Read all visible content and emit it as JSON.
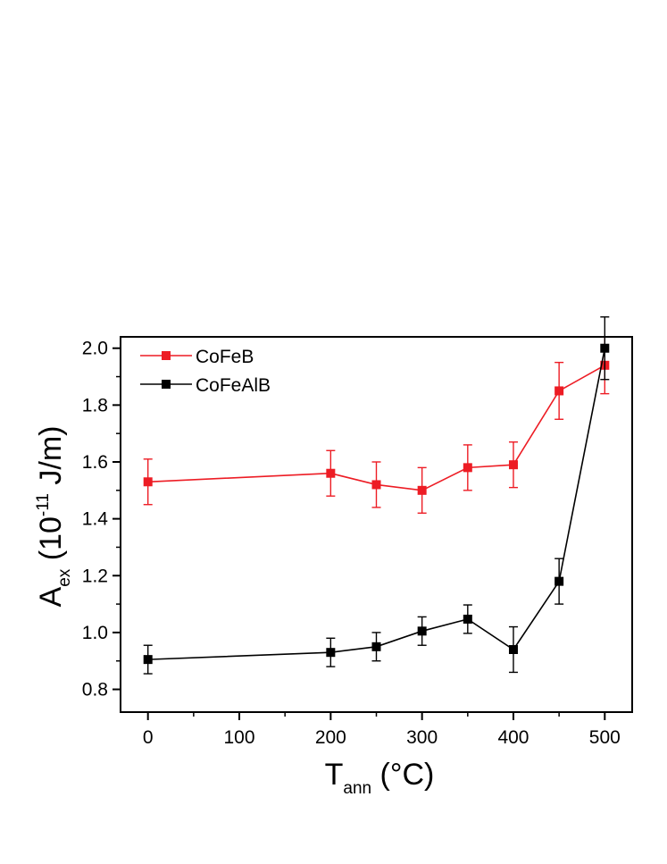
{
  "chart_data": {
    "type": "line",
    "title": "",
    "xlabel": {
      "main": "T",
      "sub": "ann",
      "unit": " (°C)"
    },
    "ylabel": {
      "main": "A",
      "sub": "ex",
      "pre_exp": " (10",
      "exp": "-11",
      "unit": " J/m)"
    },
    "xlim": [
      -30,
      530
    ],
    "ylim": [
      0.72,
      2.04
    ],
    "xticks": [
      0,
      100,
      200,
      300,
      400,
      500
    ],
    "xtick_labels": [
      "0",
      "100",
      "200",
      "300",
      "400",
      "500"
    ],
    "yticks": [
      0.8,
      1.0,
      1.2,
      1.4,
      1.6,
      1.8,
      2.0
    ],
    "ytick_labels": [
      "0.8",
      "1.0",
      "1.2",
      "1.4",
      "1.6",
      "1.8",
      "2.0"
    ],
    "grid": false,
    "legend_position": "top-left",
    "series": [
      {
        "name": "CoFeB",
        "color": "#ed1c24",
        "marker": "square",
        "x": [
          0,
          200,
          250,
          300,
          350,
          400,
          450,
          500
        ],
        "y": [
          1.53,
          1.56,
          1.52,
          1.5,
          1.58,
          1.59,
          1.85,
          1.94
        ],
        "yerr": [
          0.08,
          0.08,
          0.08,
          0.08,
          0.08,
          0.08,
          0.1,
          0.1
        ]
      },
      {
        "name": "CoFeAlB",
        "color": "#000000",
        "marker": "square",
        "x": [
          0,
          200,
          250,
          300,
          350,
          400,
          450,
          500
        ],
        "y": [
          0.905,
          0.93,
          0.95,
          1.005,
          1.047,
          0.94,
          1.18,
          2.0
        ],
        "yerr": [
          0.05,
          0.05,
          0.05,
          0.05,
          0.05,
          0.08,
          0.08,
          0.11
        ]
      }
    ]
  }
}
